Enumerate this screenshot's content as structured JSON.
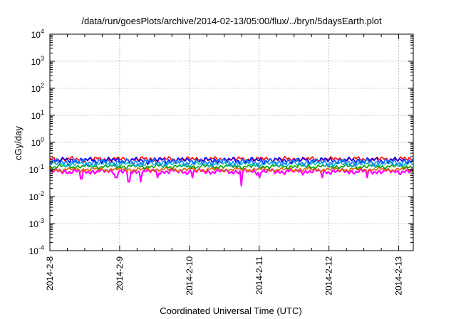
{
  "chart_data": {
    "type": "line",
    "title": "/data/run/goesPlots/archive/2014-02-13/05:00/flux/../bryn/5daysEarth.plot",
    "xlabel": "Coordinated Universal Time (UTC)",
    "ylabel": "cGy/day",
    "yscale": "log",
    "ylim": [
      0.0001,
      10000
    ],
    "xlim": [
      "2014-02-08 00:00",
      "2014-02-13 05:00"
    ],
    "x_ticks": [
      "2014-2-8",
      "2014-2-9",
      "2014-2-10",
      "2014-2-11",
      "2014-2-12",
      "2014-2-13"
    ],
    "y_ticks": [
      {
        "base": "10",
        "exp": "4"
      },
      {
        "base": "10",
        "exp": "3"
      },
      {
        "base": "10",
        "exp": "2"
      },
      {
        "base": "10",
        "exp": "1"
      },
      {
        "base": "10",
        "exp": "0"
      },
      {
        "base": "10",
        "exp": "-1"
      },
      {
        "base": "10",
        "exp": "-2"
      },
      {
        "base": "10",
        "exp": "-3"
      },
      {
        "base": "10",
        "exp": "-4"
      }
    ],
    "grid": true,
    "series": [
      {
        "color": "#ff00ff",
        "base": 0.085,
        "ripple": 0.12,
        "dips": [
          [
            0.45,
            0.045
          ],
          [
            0.95,
            0.05
          ],
          [
            1.13,
            0.035
          ],
          [
            1.3,
            0.035
          ],
          [
            1.55,
            0.05
          ],
          [
            2.05,
            0.05
          ],
          [
            2.75,
            0.025
          ],
          [
            3.0,
            0.05
          ],
          [
            3.9,
            0.05
          ],
          [
            4.55,
            0.05
          ]
        ]
      },
      {
        "color": "#e06000",
        "base": 0.1,
        "ripple": 0.1,
        "dips": []
      },
      {
        "color": "#00a000",
        "base": 0.13,
        "ripple": 0.1,
        "dips": []
      },
      {
        "color": "#00c0c0",
        "base": 0.16,
        "ripple": 0.12,
        "dips": []
      },
      {
        "color": "#ff0000",
        "base": 0.24,
        "ripple": 0.12,
        "dips": []
      },
      {
        "color": "#0000ff",
        "base": 0.22,
        "ripple": 0.14,
        "dips": []
      },
      {
        "color": "#2080ff",
        "base": 0.19,
        "ripple": 0.16,
        "dips": []
      }
    ]
  }
}
